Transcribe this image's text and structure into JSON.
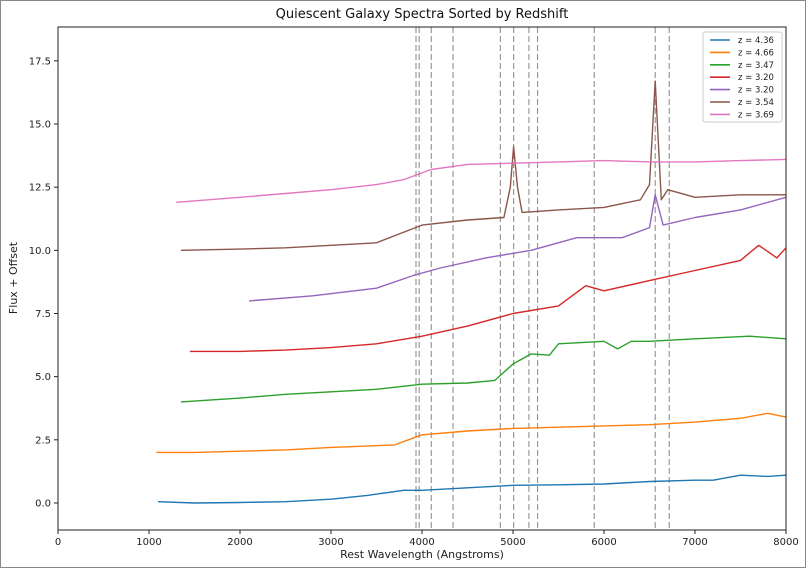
{
  "chart_data": {
    "type": "line",
    "title": "Quiescent Galaxy Spectra Sorted by Redshift",
    "xlabel": "Rest Wavelength (Angstroms)",
    "ylabel": "Flux + Offset",
    "xlim": [
      0,
      8000
    ],
    "ylim": [
      -1.07,
      18.84
    ],
    "xticks": [
      0,
      1000,
      2000,
      3000,
      4000,
      5000,
      6000,
      7000,
      8000
    ],
    "yticks": [
      0.0,
      2.5,
      5.0,
      7.5,
      10.0,
      12.5,
      15.0,
      17.5
    ],
    "ytick_labels": [
      "0.0",
      "2.5",
      "5.0",
      "7.5",
      "10.0",
      "12.5",
      "15.0",
      "17.5"
    ],
    "grid": false,
    "legend_position": "top-right",
    "reference_lines": [
      3934,
      3969,
      4102,
      4341,
      4861,
      5007,
      5175,
      5270,
      5893,
      6563,
      6717
    ],
    "reference_line_color": "#999999",
    "series": [
      {
        "name": "z = 4.36",
        "color": "#1f77b4",
        "x": [
          1100,
          1500,
          2000,
          2500,
          3000,
          3400,
          3800,
          4000,
          4500,
          5000,
          5500,
          6000,
          6500,
          7000,
          7200,
          7500,
          7800,
          8000
        ],
        "y": [
          0.05,
          0.0,
          0.02,
          0.05,
          0.15,
          0.3,
          0.5,
          0.5,
          0.6,
          0.7,
          0.72,
          0.75,
          0.85,
          0.9,
          0.9,
          1.1,
          1.05,
          1.1
        ]
      },
      {
        "name": "z = 4.66",
        "color": "#ff7f0e",
        "x": [
          1080,
          1500,
          2000,
          2500,
          3000,
          3700,
          4000,
          4500,
          5000,
          5500,
          6000,
          6500,
          7000,
          7500,
          7800,
          8000
        ],
        "y": [
          2.0,
          2.0,
          2.05,
          2.1,
          2.2,
          2.3,
          2.7,
          2.85,
          2.95,
          3.0,
          3.05,
          3.1,
          3.2,
          3.35,
          3.55,
          3.4
        ]
      },
      {
        "name": "z = 3.47",
        "color": "#2ca02c",
        "x": [
          1350,
          2000,
          2500,
          3000,
          3500,
          4000,
          4500,
          4800,
          5000,
          5200,
          5400,
          5500,
          6000,
          6150,
          6300,
          6500,
          7000,
          7600,
          8000
        ],
        "y": [
          4.0,
          4.15,
          4.3,
          4.4,
          4.5,
          4.7,
          4.75,
          4.85,
          5.5,
          5.9,
          5.85,
          6.3,
          6.4,
          6.1,
          6.4,
          6.4,
          6.5,
          6.6,
          6.5
        ]
      },
      {
        "name": "z = 3.20",
        "color": "#d62728",
        "x": [
          1450,
          2000,
          2500,
          3000,
          3500,
          4000,
          4500,
          5000,
          5500,
          5800,
          6000,
          6500,
          7000,
          7500,
          7700,
          7900,
          8000
        ],
        "y": [
          6.0,
          6.0,
          6.05,
          6.15,
          6.3,
          6.6,
          7.0,
          7.5,
          7.8,
          8.6,
          8.4,
          8.8,
          9.2,
          9.6,
          10.2,
          9.7,
          10.1
        ]
      },
      {
        "name": "z = 3.20",
        "color": "#9467bd",
        "x": [
          2100,
          2800,
          3500,
          3900,
          4200,
          4700,
          5200,
          5700,
          6200,
          6500,
          6563,
          6650,
          7000,
          7500,
          8000
        ],
        "y": [
          8.0,
          8.2,
          8.5,
          9.0,
          9.3,
          9.7,
          10.0,
          10.5,
          10.5,
          10.9,
          12.2,
          11.0,
          11.3,
          11.6,
          12.1
        ]
      },
      {
        "name": "z = 3.54",
        "color": "#8c564b",
        "x": [
          1350,
          2000,
          2500,
          3000,
          3500,
          4000,
          4500,
          4900,
          4970,
          5007,
          5050,
          5100,
          5500,
          6000,
          6400,
          6500,
          6563,
          6630,
          6700,
          7000,
          7500,
          8000
        ],
        "y": [
          10.0,
          10.05,
          10.1,
          10.2,
          10.3,
          11.0,
          11.2,
          11.3,
          12.5,
          14.1,
          12.5,
          11.5,
          11.6,
          11.7,
          12.0,
          12.6,
          16.7,
          12.0,
          12.4,
          12.1,
          12.2,
          12.2
        ]
      },
      {
        "name": "z = 3.69",
        "color": "#e377c2",
        "x": [
          1300,
          2000,
          2500,
          3000,
          3500,
          3800,
          4100,
          4500,
          5000,
          5500,
          6000,
          6500,
          7000,
          7500,
          8000
        ],
        "y": [
          11.9,
          12.1,
          12.25,
          12.4,
          12.6,
          12.8,
          13.2,
          13.4,
          13.45,
          13.5,
          13.55,
          13.5,
          13.5,
          13.55,
          13.6
        ]
      }
    ]
  }
}
